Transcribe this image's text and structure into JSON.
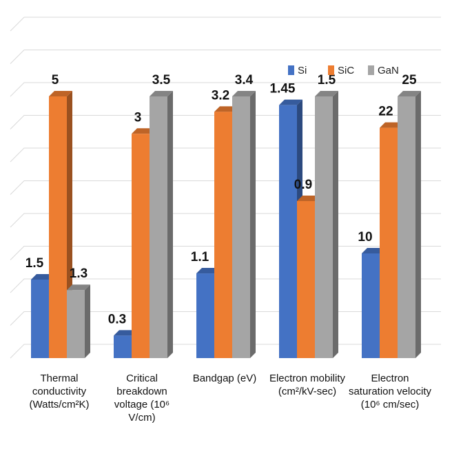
{
  "chart_data": {
    "type": "bar3d",
    "categories": [
      "Thermal conductivity (Watts/cm²K)",
      "Critical breakdown voltage (10⁶ V/cm)",
      "Bandgap (eV)",
      "Electron mobility (cm²/kV-sec)",
      "Electron saturation velocity (10⁶ cm/sec)"
    ],
    "series": [
      {
        "name": "Si",
        "color": "#4472c4",
        "values": [
          1.5,
          0.3,
          1.1,
          1.45,
          10
        ]
      },
      {
        "name": "SiC",
        "color": "#ed7d31",
        "values": [
          5,
          3,
          3.2,
          0.9,
          22
        ]
      },
      {
        "name": "GaN",
        "color": "#a5a5a5",
        "values": [
          1.3,
          3.5,
          3.4,
          1.5,
          25
        ]
      }
    ],
    "grid": true,
    "legend": "upper right"
  }
}
